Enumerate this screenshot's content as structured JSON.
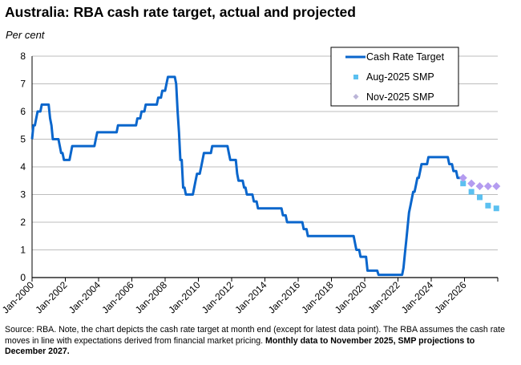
{
  "chart_data": {
    "type": "line",
    "title": "Australia: RBA cash rate target, actual and projected",
    "ylabel": "Per cent",
    "ylim": [
      0,
      8
    ],
    "yticks": [
      0,
      1,
      2,
      3,
      4,
      5,
      6,
      7,
      8
    ],
    "xlim": [
      "2000-01",
      "2028-01"
    ],
    "xtick_labels": [
      "Jan-2000",
      "Jan-2002",
      "Jan-2004",
      "Jan-2006",
      "Jan-2008",
      "Jan-2010",
      "Jan-2012",
      "Jan-2014",
      "Jan-2016",
      "Jan-2018",
      "Jan-2020",
      "Jan-2022",
      "Jan-2024",
      "Jan-2026"
    ],
    "grid": "horizontal",
    "legend_placement": "top-right",
    "series": [
      {
        "name": "Cash Rate Target",
        "kind": "line",
        "color": "#0a66cc",
        "rate_changes": [
          [
            "2000-01",
            5.0
          ],
          [
            "2000-02",
            5.5
          ],
          [
            "2000-04",
            5.75
          ],
          [
            "2000-05",
            6.0
          ],
          [
            "2000-08",
            6.25
          ],
          [
            "2001-02",
            5.75
          ],
          [
            "2001-03",
            5.5
          ],
          [
            "2001-04",
            5.0
          ],
          [
            "2001-09",
            4.75
          ],
          [
            "2001-10",
            4.5
          ],
          [
            "2001-12",
            4.25
          ],
          [
            "2002-05",
            4.5
          ],
          [
            "2002-06",
            4.75
          ],
          [
            "2003-11",
            5.0
          ],
          [
            "2003-12",
            5.25
          ],
          [
            "2005-03",
            5.5
          ],
          [
            "2006-05",
            5.75
          ],
          [
            "2006-08",
            6.0
          ],
          [
            "2006-11",
            6.25
          ],
          [
            "2007-08",
            6.5
          ],
          [
            "2007-11",
            6.75
          ],
          [
            "2008-02",
            7.0
          ],
          [
            "2008-03",
            7.25
          ],
          [
            "2008-09",
            7.0
          ],
          [
            "2008-10",
            6.0
          ],
          [
            "2008-11",
            5.25
          ],
          [
            "2008-12",
            4.25
          ],
          [
            "2009-02",
            3.25
          ],
          [
            "2009-04",
            3.0
          ],
          [
            "2009-10",
            3.25
          ],
          [
            "2009-11",
            3.5
          ],
          [
            "2009-12",
            3.75
          ],
          [
            "2010-03",
            4.0
          ],
          [
            "2010-04",
            4.25
          ],
          [
            "2010-05",
            4.5
          ],
          [
            "2010-11",
            4.75
          ],
          [
            "2011-11",
            4.5
          ],
          [
            "2011-12",
            4.25
          ],
          [
            "2012-05",
            3.75
          ],
          [
            "2012-06",
            3.5
          ],
          [
            "2012-10",
            3.25
          ],
          [
            "2012-12",
            3.0
          ],
          [
            "2013-05",
            2.75
          ],
          [
            "2013-08",
            2.5
          ],
          [
            "2015-02",
            2.25
          ],
          [
            "2015-05",
            2.0
          ],
          [
            "2016-05",
            1.75
          ],
          [
            "2016-08",
            1.5
          ],
          [
            "2019-06",
            1.25
          ],
          [
            "2019-07",
            1.0
          ],
          [
            "2019-10",
            0.75
          ],
          [
            "2020-03",
            0.25
          ],
          [
            "2020-11",
            0.1
          ],
          [
            "2022-05",
            0.35
          ],
          [
            "2022-06",
            0.85
          ],
          [
            "2022-07",
            1.35
          ],
          [
            "2022-08",
            1.85
          ],
          [
            "2022-09",
            2.35
          ],
          [
            "2022-10",
            2.6
          ],
          [
            "2022-11",
            2.85
          ],
          [
            "2022-12",
            3.1
          ],
          [
            "2023-02",
            3.35
          ],
          [
            "2023-03",
            3.6
          ],
          [
            "2023-05",
            3.85
          ],
          [
            "2023-06",
            4.1
          ],
          [
            "2023-11",
            4.35
          ],
          [
            "2025-02",
            4.1
          ],
          [
            "2025-05",
            3.85
          ],
          [
            "2025-08",
            3.6
          ]
        ],
        "end": "2025-11"
      },
      {
        "name": "Aug-2025 SMP",
        "kind": "marker-square",
        "color": "#5bc0f0",
        "x": [
          "2025-12",
          "2026-06",
          "2026-12",
          "2027-06",
          "2027-12"
        ],
        "y": [
          3.4,
          3.1,
          2.9,
          2.6,
          2.5
        ]
      },
      {
        "name": "Nov-2025 SMP",
        "kind": "marker-diamond",
        "color": "#b49cf0",
        "x": [
          "2025-12",
          "2026-06",
          "2026-12",
          "2027-06",
          "2027-12"
        ],
        "y": [
          3.6,
          3.4,
          3.3,
          3.3,
          3.3
        ]
      }
    ]
  },
  "footnote": {
    "text": "Source: RBA. Note, the chart depicts the cash rate target at month end (except for latest data point). The RBA assumes the cash rate moves in line with expectations derived from financial market pricing. ",
    "bold": "Monthly data to November 2025, SMP projections to December 2027."
  }
}
